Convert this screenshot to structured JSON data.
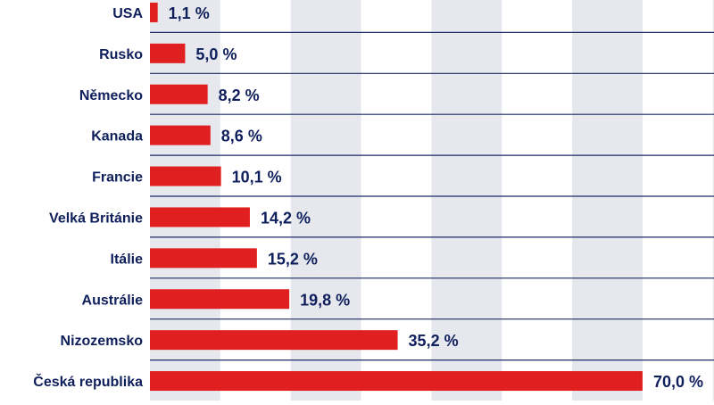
{
  "chart_data": {
    "type": "bar",
    "orientation": "horizontal",
    "categories": [
      "USA",
      "Rusko",
      "Německo",
      "Kanada",
      "Francie",
      "Velká Británie",
      "Itálie",
      "Austrálie",
      "Nizozemsko",
      "Česká republika"
    ],
    "values": [
      1.1,
      5.0,
      8.2,
      8.6,
      10.1,
      14.2,
      15.2,
      19.8,
      35.2,
      70.0
    ],
    "value_labels": [
      "1,1 %",
      "5,0 %",
      "8,2 %",
      "8,6 %",
      "10,1 %",
      "14,2 %",
      "15,2 %",
      "19,8 %",
      "35,2 %",
      "70,0 %"
    ],
    "xlim": [
      0,
      80
    ],
    "unit": "%",
    "title": "",
    "xlabel": "",
    "ylabel": "",
    "grid": "alternating vertical bands",
    "legend": "none"
  },
  "colors": {
    "bar": "#e02020",
    "text": "#0f1f5c",
    "band": "#e6e8ee",
    "separator": "#1a2a64",
    "background": "#ffffff"
  }
}
